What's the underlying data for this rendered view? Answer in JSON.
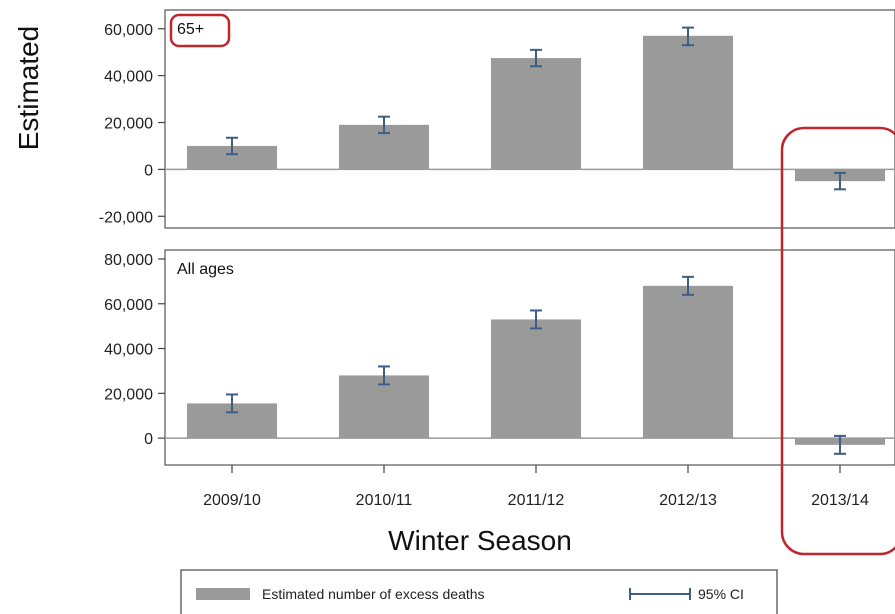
{
  "chart_data": [
    {
      "type": "bar",
      "panel_label": "65+",
      "categories": [
        "2009/10",
        "2010/11",
        "2011/12",
        "2012/13",
        "2013/14"
      ],
      "series": [
        {
          "values": [
            10000,
            19000,
            47500,
            57000,
            -5000
          ]
        }
      ],
      "ci_low": [
        6500,
        15500,
        44000,
        53000,
        -8500
      ],
      "ci_high": [
        13500,
        22500,
        51000,
        60500,
        -1500
      ],
      "ylim": [
        -25000,
        68000
      ],
      "yticks": [
        -20000,
        0,
        20000,
        40000,
        60000
      ],
      "ytick_labels": [
        "-20,000",
        "0",
        "20,000",
        "40,000",
        "60,000"
      ],
      "ylabel": "Estimated",
      "grid": false
    },
    {
      "type": "bar",
      "panel_label": "All ages",
      "categories": [
        "2009/10",
        "2010/11",
        "2011/12",
        "2012/13",
        "2013/14"
      ],
      "series": [
        {
          "values": [
            15500,
            28000,
            53000,
            68000,
            -3000
          ]
        }
      ],
      "ci_low": [
        11500,
        24000,
        49000,
        64000,
        -7000
      ],
      "ci_high": [
        19500,
        32000,
        57000,
        72000,
        1000
      ],
      "ylim": [
        -12000,
        84000
      ],
      "yticks": [
        0,
        20000,
        40000,
        60000,
        80000
      ],
      "ytick_labels": [
        "0",
        "20,000",
        "40,000",
        "60,000",
        "80,000"
      ],
      "xlabel": "Winter Season",
      "grid": false
    }
  ],
  "legend": {
    "bar_label": "Estimated number of excess deaths",
    "ci_label": "95% CI",
    "position": "bottom"
  },
  "colors": {
    "bar": "#9a9a9a",
    "errorbar": "#3d5f85",
    "highlight": "#c0262d",
    "zero_line": "#9a9a9a",
    "frame": "#555555"
  }
}
